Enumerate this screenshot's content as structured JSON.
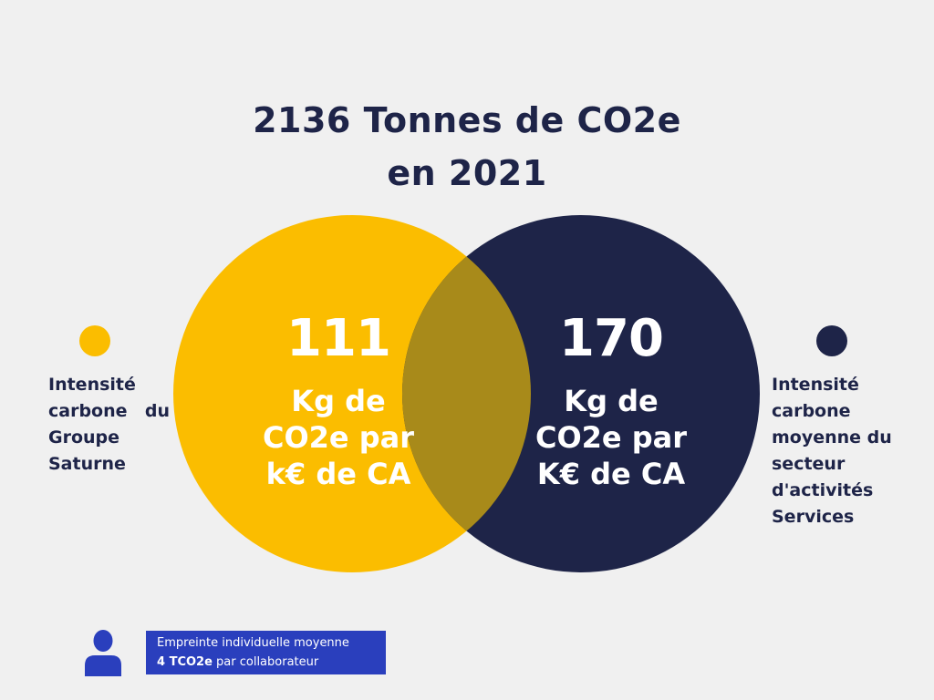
{
  "title": {
    "line1": "2136 Tonnes de CO2e",
    "line2": "en 2021"
  },
  "colors": {
    "background": "#f0f0f0",
    "yellow": "#fbbd00",
    "navy": "#1e2448",
    "overlap": "#a88a1a",
    "footer_box": "#2a3fbd"
  },
  "left_stat": {
    "value": "111",
    "unit_line1": "Kg de",
    "unit_line2": "CO2e par",
    "unit_line3": "k€ de CA"
  },
  "right_stat": {
    "value": "170",
    "unit_line1": "Kg de",
    "unit_line2": "CO2e par",
    "unit_line3": "K€ de CA"
  },
  "left_label": {
    "line1": "Intensité",
    "line2_a": "carbone",
    "line2_b": "du",
    "line3": "Groupe",
    "line4": "Saturne"
  },
  "right_label": {
    "line1": "Intensité",
    "line2": "carbone",
    "line3": "moyenne du",
    "line4": "secteur",
    "line5": "d'activités",
    "line6": "Services"
  },
  "footer": {
    "icon": "person-icon",
    "line1": "Empreinte individuelle moyenne",
    "line2_bold": "4 TCO2e",
    "line2_rest": " par collaborateur"
  }
}
